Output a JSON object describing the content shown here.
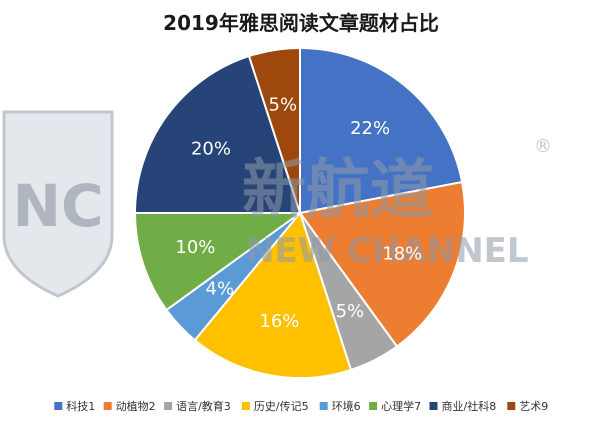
{
  "chart_data": {
    "type": "pie",
    "title": "2019年雅思阅读文章题材占比",
    "categories": [
      "科技1",
      "动植物2",
      "语言/教育3",
      "历史/传记5",
      "环境6",
      "心理学7",
      "商业/社科8",
      "艺术9"
    ],
    "values": [
      22,
      18,
      5,
      16,
      4,
      10,
      20,
      5
    ],
    "data_labels": [
      "22%",
      "18%",
      "5%",
      "16%",
      "4%",
      "10%",
      "20%",
      "5%"
    ],
    "colors": [
      "#4472C4",
      "#ED7D31",
      "#A5A5A5",
      "#FFC000",
      "#5B9BD5",
      "#70AD47",
      "#264478",
      "#9E480E"
    ],
    "start_angle_deg": 0,
    "direction": "clockwise",
    "legend_position": "bottom"
  },
  "watermark": {
    "icon": "nc-shield-logo-icon",
    "logo_letters": "NC",
    "brand_cn": "新航道",
    "brand_en": "NEW CHANNEL",
    "registered_mark": "®"
  }
}
